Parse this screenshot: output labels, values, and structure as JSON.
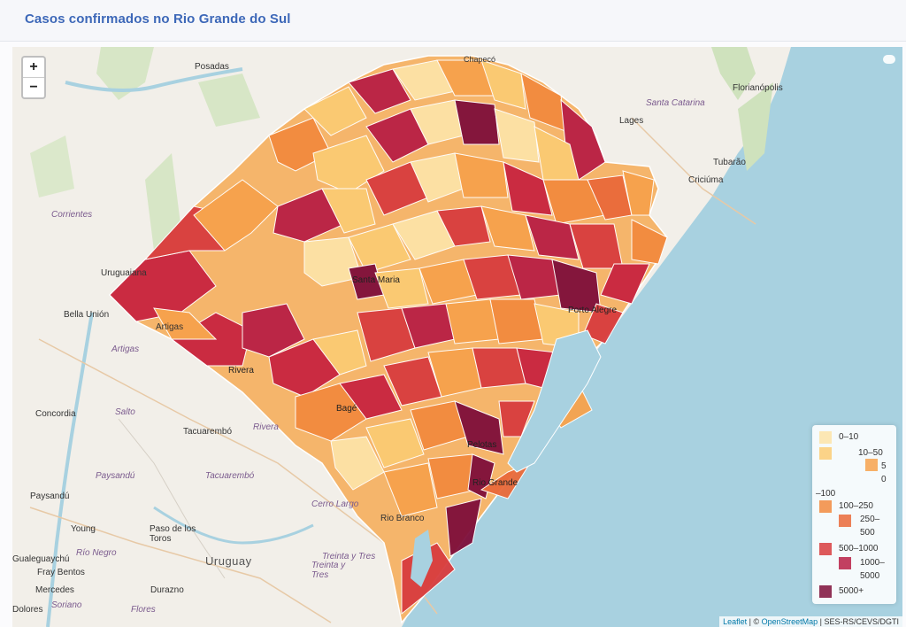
{
  "panel": {
    "title": "Casos confirmados no Rio Grande do Sul"
  },
  "zoom": {
    "in": "+",
    "out": "−"
  },
  "basemap": {
    "country": "Uruguay",
    "regions": [
      "Santa Catarina",
      "Corrientes",
      "Artigas",
      "Salto",
      "Rivera",
      "Paysandú",
      "Tacuarembó",
      "Cerro Largo",
      "Río Negro",
      "Treinta y Tres"
    ],
    "cities": [
      "Posadas",
      "Chapecó",
      "Florianópolis",
      "Lages",
      "Tubarão",
      "Criciúma",
      "Uruguaiana",
      "Bella Unión",
      "Artigas",
      "Concordia",
      "Tacuarembó",
      "Paysandú",
      "Young",
      "Paso de los Toros",
      "Fray Bentos",
      "Mercedes",
      "Durazno",
      "Rio Branco",
      "Flores",
      "Soriano",
      "Treinta y Tres",
      "Gualeguaychú",
      "Dolores"
    ],
    "map_city_labels": [
      "Santa Maria",
      "Porto Alegre",
      "Rivera",
      "Bagé",
      "Pelotas",
      "Rio Grande"
    ]
  },
  "legend": {
    "entries": [
      {
        "label": "0–10",
        "color": "#fde3a7"
      },
      {
        "label": "10–50",
        "color": "#fbcb73"
      },
      {
        "label": "50–100",
        "color": "#f7a24c"
      },
      {
        "label": "100–250",
        "color": "#f28a3e"
      },
      {
        "label": "250–500",
        "color": "#ea6a3a"
      },
      {
        "label": "500–1000",
        "color": "#d83c3e"
      },
      {
        "label": "1000–5000",
        "color": "#b81f45"
      },
      {
        "label": "5000+",
        "color": "#7e0e3a"
      }
    ],
    "wrapped_fragments": {
      "b": "5",
      "c": "0",
      "d": "–100",
      "e": "250–",
      "f": "500",
      "g": "1000–",
      "h": "5000"
    }
  },
  "attribution": {
    "leaflet": "Leaflet",
    "sep1": " | © ",
    "osm": "OpenStreetMap",
    "sep2": " | SES-RS/CEVS/DGTI"
  },
  "colors": {
    "water": "#a8d1e0",
    "land": "#f2efe9",
    "title": "#3d68b8"
  }
}
